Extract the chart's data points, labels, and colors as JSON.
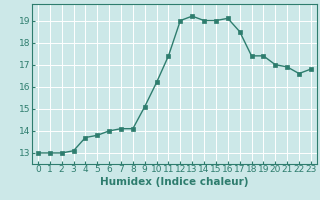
{
  "x": [
    0,
    1,
    2,
    3,
    4,
    5,
    6,
    7,
    8,
    9,
    10,
    11,
    12,
    13,
    14,
    15,
    16,
    17,
    18,
    19,
    20,
    21,
    22,
    23
  ],
  "y": [
    13.0,
    13.0,
    13.0,
    13.1,
    13.7,
    13.8,
    14.0,
    14.1,
    14.1,
    15.1,
    16.2,
    17.4,
    19.0,
    19.2,
    19.0,
    19.0,
    19.1,
    18.5,
    17.4,
    17.4,
    17.0,
    16.9,
    16.6,
    16.8
  ],
  "line_color": "#2e7d6e",
  "marker": "s",
  "markersize": 2.5,
  "linewidth": 1.0,
  "bg_color": "#cce8e8",
  "grid_color": "#ffffff",
  "xlabel": "Humidex (Indice chaleur)",
  "xlim": [
    -0.5,
    23.5
  ],
  "ylim": [
    12.5,
    19.75
  ],
  "yticks": [
    13,
    14,
    15,
    16,
    17,
    18,
    19
  ],
  "xticks": [
    0,
    1,
    2,
    3,
    4,
    5,
    6,
    7,
    8,
    9,
    10,
    11,
    12,
    13,
    14,
    15,
    16,
    17,
    18,
    19,
    20,
    21,
    22,
    23
  ],
  "tick_color": "#2e7d6e",
  "label_color": "#2e7d6e",
  "xlabel_fontsize": 7.5,
  "tick_fontsize": 6.5
}
